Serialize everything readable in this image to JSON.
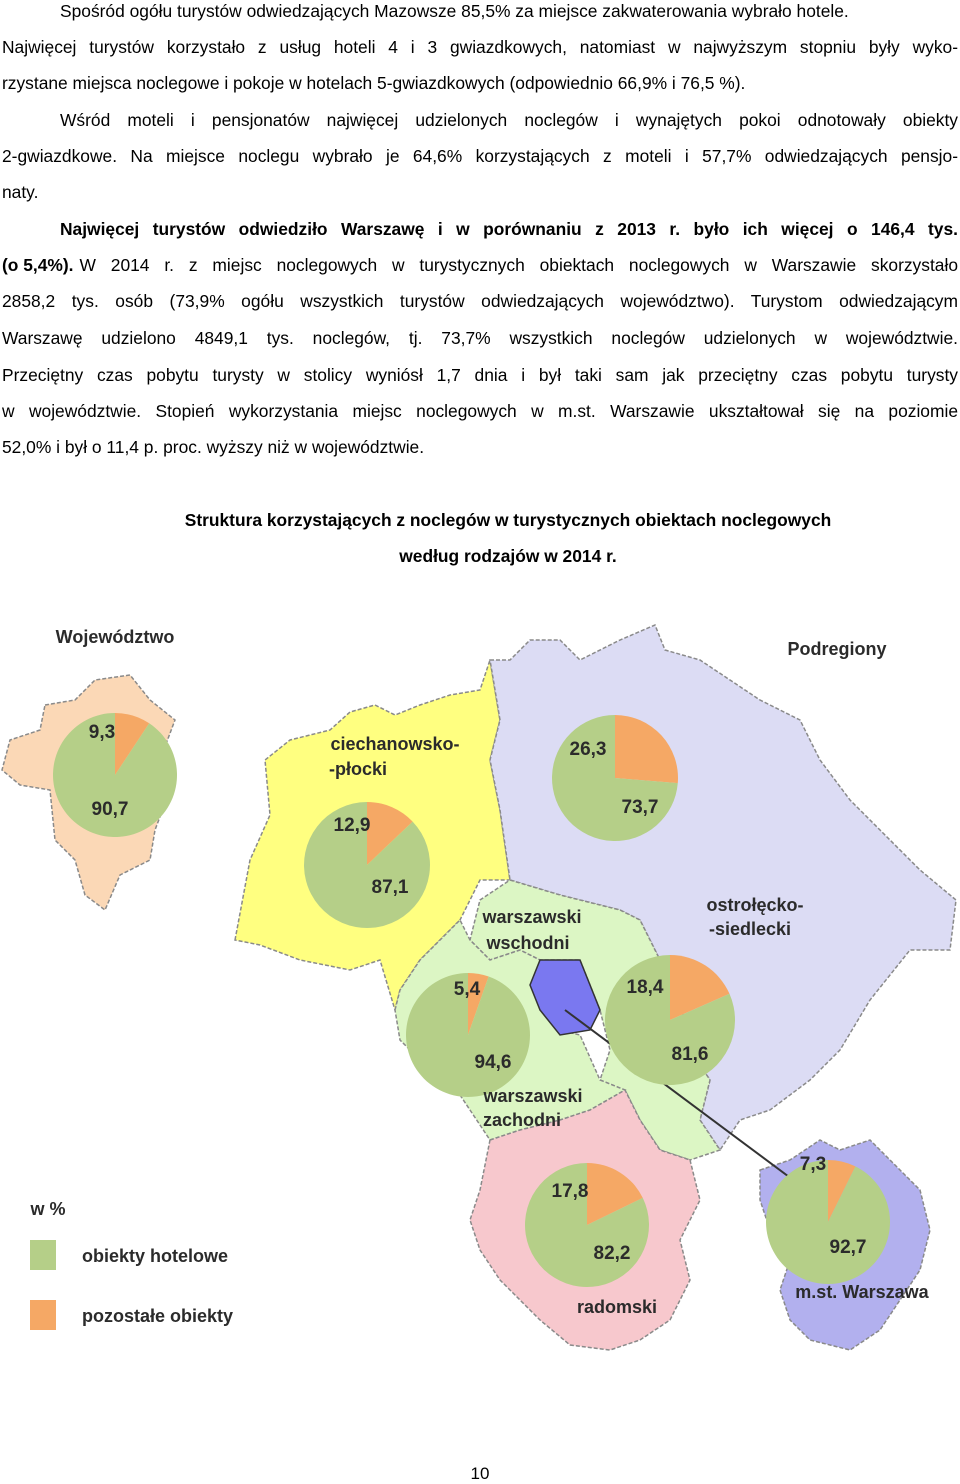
{
  "text": {
    "paragraphs": [
      {
        "lines": [
          "Spośród ogółu turystów odwiedzających Mazowsze 85,5% za miejsce zakwaterowania wybrało hotele.",
          "Najwięcej turystów korzystało z usług hoteli 4 i 3 gwiazdkowych, natomiast w najwyższym stopniu były wyko-",
          "rzystane miejsca noclegowe i pokoje w hotelach 5-gwiazdkowych (odpowiednio 66,9% i 76,5 %)."
        ]
      },
      {
        "lines": [
          "Wśród moteli i pensjonatów najwięcej udzielonych noclegów i wynajętych pokoi odnotowały obiekty",
          "2-gwiazdkowe. Na miejsce noclegu wybrało je 64,6% korzystających z moteli i 57,7% odwiedzających pensjo-",
          "naty."
        ]
      },
      {
        "lines": [
          "Najwięcej turystów odwiedziło Warszawę i w porównaniu z 2013 r. było ich więcej o 146,4 tys.",
          "(o 5,4%).",
          "W 2014 r. z miejsc noclegowych w turystycznych obiektach noclegowych w Warszawie skorzystało",
          "2858,2 tys. osób (73,9% ogółu wszystkich turystów odwiedzających województwo). Turystom odwiedzającym",
          "Warszawę udzielono 4849,1 tys. noclegów, tj. 73,7% wszystkich noclegów udzielonych w województwie.",
          "Przeciętny czas pobytu turysty w stolicy wyniósł 1,7 dnia i był taki sam jak przeciętny czas pobytu turysty",
          "w województwie. Stopień wykorzystania miejsc noclegowych w m.st. Warszawie ukształtował się na poziomie",
          "52,0% i był o 11,4 p. proc. wyższy niż w województwie."
        ]
      }
    ]
  },
  "figure": {
    "title_lines": [
      "Struktura korzystających z noclegów w turystycznych obiektach noclegowych",
      "według rodzajów w 2014 r."
    ],
    "inset_label": "Województwo",
    "regions_label": "Podregiony",
    "unit": "w %",
    "legend": [
      {
        "name": "obiekty hotelowe",
        "color": "#b5cf88"
      },
      {
        "name": "pozostałe obiekty",
        "color": "#f5a865"
      }
    ],
    "pies": [
      {
        "values": [
          90.7,
          9.3
        ],
        "value_labels": [
          "90,7",
          "9,3"
        ]
      },
      {
        "label_lines": [
          "ciechanowsko-",
          "-płocki"
        ],
        "values": [
          87.1,
          12.9
        ],
        "value_labels": [
          "87,1",
          "12,9"
        ]
      },
      {
        "label_lines": [
          "ostrołęcko-",
          "-siedlecki"
        ],
        "values": [
          73.7,
          26.3
        ],
        "value_labels": [
          "73,7",
          "26,3"
        ]
      },
      {
        "label_lines": [
          "warszawski",
          "wschodni"
        ],
        "values": [
          81.6,
          18.4
        ],
        "value_labels": [
          "81,6",
          "18,4"
        ]
      },
      {
        "label_lines": [
          "warszawski",
          "zachodni"
        ],
        "values": [
          94.6,
          5.4
        ],
        "value_labels": [
          "94,6",
          "5,4"
        ]
      },
      {
        "label_lines": [
          "radomski"
        ],
        "values": [
          82.2,
          17.8
        ],
        "value_labels": [
          "82,2",
          "17,8"
        ]
      },
      {
        "label_lines": [
          "m.st. Warszawa"
        ],
        "values": [
          92.7,
          7.3
        ],
        "value_labels": [
          "92,7",
          "7,3"
        ]
      }
    ]
  },
  "page_number": "10"
}
